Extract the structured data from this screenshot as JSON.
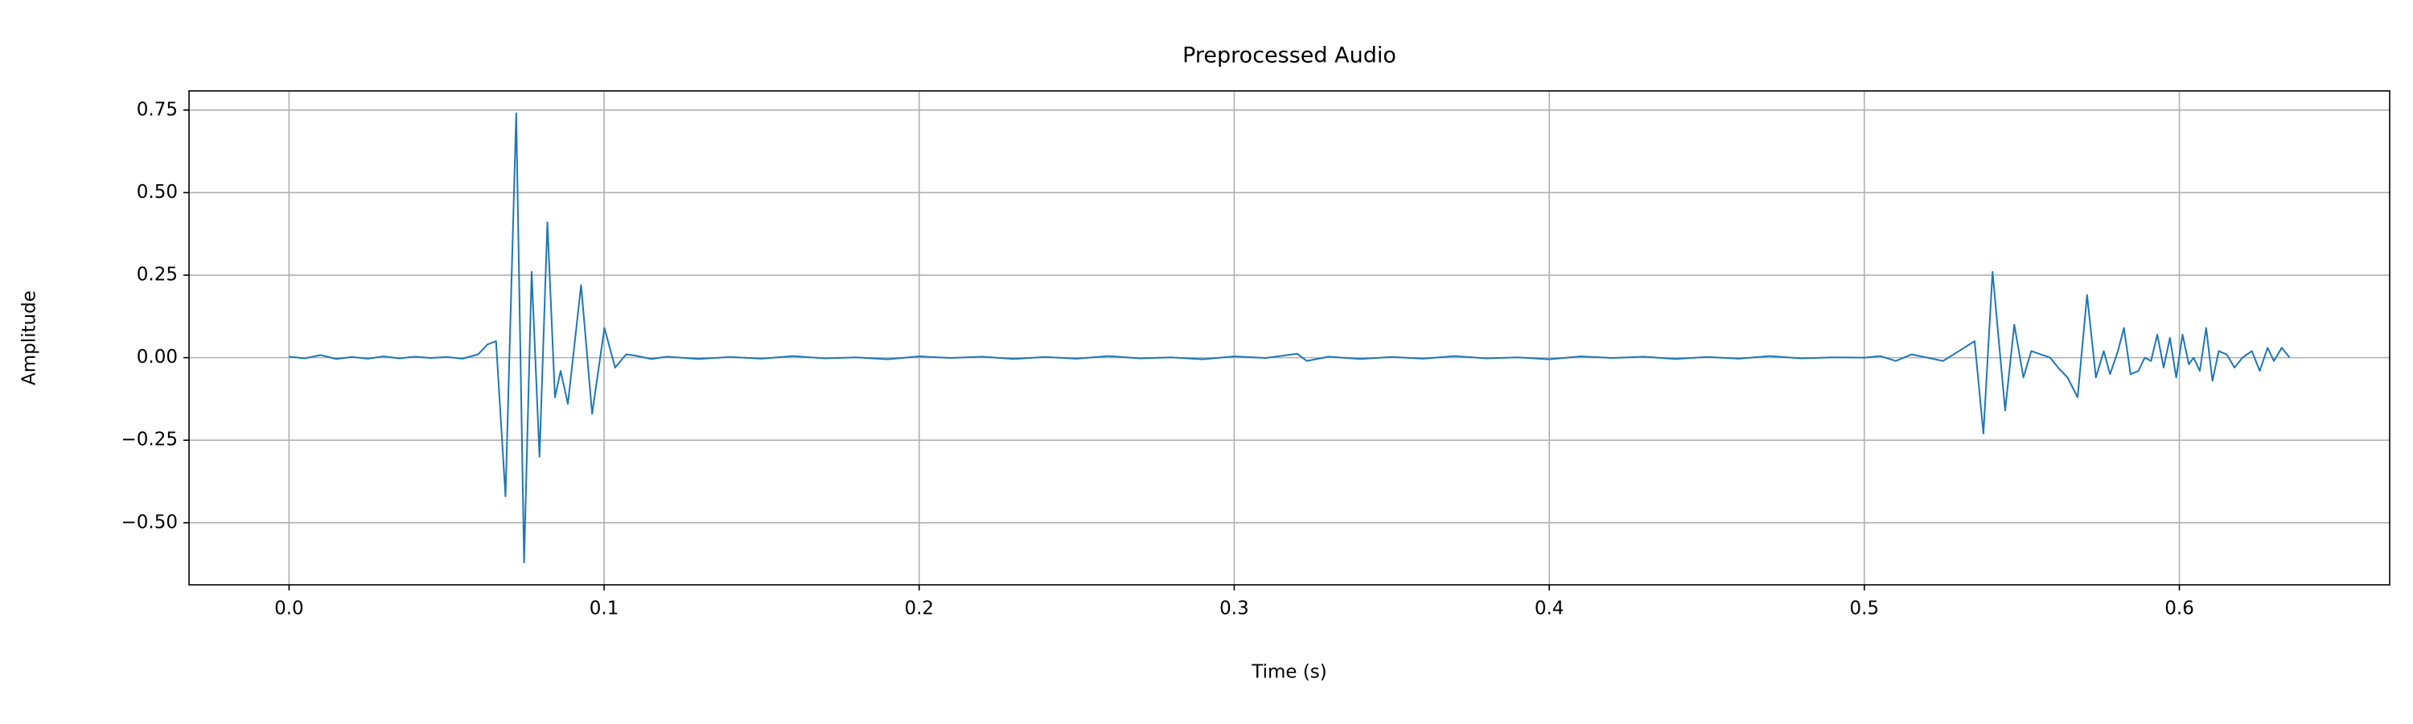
{
  "chart_data": {
    "type": "line",
    "title": "Preprocessed Audio",
    "x_label": "Time (s)",
    "y_label": "Amplitude",
    "x": [
      0,
      0.005,
      0.01,
      0.015,
      0.02,
      0.025,
      0.03,
      0.035,
      0.04,
      0.045,
      0.05,
      0.055,
      0.06,
      0.063,
      0.0657,
      0.0687,
      0.0721,
      0.0746,
      0.077,
      0.0795,
      0.082,
      0.0844,
      0.0862,
      0.0885,
      0.0927,
      0.0962,
      0.1001,
      0.1035,
      0.107,
      0.11,
      0.115,
      0.12,
      0.13,
      0.14,
      0.15,
      0.16,
      0.17,
      0.18,
      0.19,
      0.2,
      0.21,
      0.22,
      0.23,
      0.24,
      0.25,
      0.26,
      0.27,
      0.28,
      0.29,
      0.3,
      0.31,
      0.32,
      0.323,
      0.33,
      0.34,
      0.35,
      0.36,
      0.37,
      0.38,
      0.39,
      0.4,
      0.41,
      0.42,
      0.43,
      0.44,
      0.45,
      0.46,
      0.47,
      0.48,
      0.49,
      0.5,
      0.505,
      0.51,
      0.515,
      0.52,
      0.525,
      0.53,
      0.535,
      0.5378,
      0.5407,
      0.5447,
      0.5476,
      0.5505,
      0.553,
      0.556,
      0.559,
      0.5615,
      0.5645,
      0.5677,
      0.5707,
      0.5735,
      0.576,
      0.578,
      0.5805,
      0.5824,
      0.5845,
      0.587,
      0.589,
      0.591,
      0.593,
      0.595,
      0.597,
      0.599,
      0.601,
      0.603,
      0.6045,
      0.6065,
      0.6085,
      0.6105,
      0.6125,
      0.615,
      0.6175,
      0.62,
      0.623,
      0.6255,
      0.628,
      0.63,
      0.6325,
      0.635
    ],
    "values": [
      0.003,
      -0.002,
      0.008,
      -0.004,
      0.002,
      -0.003,
      0.004,
      -0.002,
      0.003,
      -0.001,
      0.002,
      -0.003,
      0.01,
      0.04,
      0.05,
      -0.42,
      0.74,
      -0.62,
      0.26,
      -0.3,
      0.41,
      -0.12,
      -0.04,
      -0.14,
      0.22,
      -0.17,
      0.09,
      -0.03,
      0.01,
      0.006,
      -0.004,
      0.003,
      -0.004,
      0.002,
      -0.003,
      0.005,
      -0.002,
      0.001,
      -0.005,
      0.004,
      -0.001,
      0.003,
      -0.004,
      0.002,
      -0.003,
      0.005,
      -0.002,
      0.001,
      -0.005,
      0.004,
      -0.001,
      0.012,
      -0.01,
      0.003,
      -0.004,
      0.002,
      -0.003,
      0.005,
      -0.002,
      0.001,
      -0.005,
      0.004,
      -0.001,
      0.003,
      -0.004,
      0.002,
      -0.003,
      0.005,
      -0.002,
      0.001,
      0.0,
      0.005,
      -0.01,
      0.01,
      0.0,
      -0.01,
      0.02,
      0.05,
      -0.23,
      0.26,
      -0.16,
      0.1,
      -0.06,
      0.02,
      0.01,
      0.0,
      -0.03,
      -0.06,
      -0.12,
      0.19,
      -0.06,
      0.02,
      -0.05,
      0.02,
      0.09,
      -0.05,
      -0.04,
      0.0,
      -0.01,
      0.07,
      -0.03,
      0.06,
      -0.06,
      0.07,
      -0.02,
      0.0,
      -0.04,
      0.09,
      -0.07,
      0.02,
      0.01,
      -0.03,
      0.0,
      0.02,
      -0.04,
      0.03,
      -0.01,
      0.03,
      0.0
    ],
    "color": "#1f77b4",
    "xlim": [
      -0.03175,
      0.66675
    ],
    "ylim": [
      -0.688,
      0.808
    ],
    "xticks": [
      {
        "value": 0,
        "label": "0.0"
      },
      0.1,
      0.2,
      0.3,
      0.4,
      0.5,
      0.6
    ],
    "yticks": [
      {
        "value": -0.5,
        "label": "−0.50"
      },
      {
        "value": -0.25,
        "label": "−0.25"
      },
      {
        "value": 0,
        "label": "0.00"
      },
      0.25,
      {
        "value": 0.5,
        "label": "0.50"
      },
      0.75
    ],
    "grid": true
  }
}
